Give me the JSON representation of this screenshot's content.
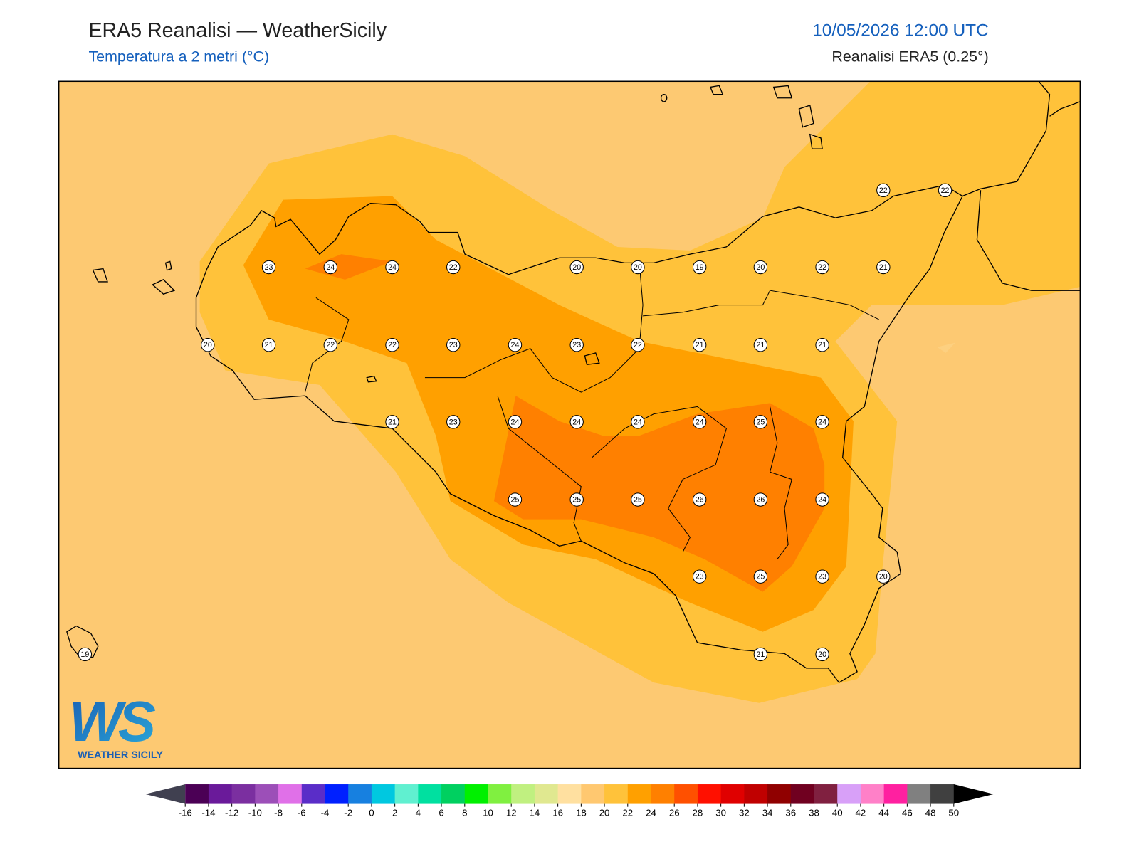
{
  "header": {
    "title": "ERA5 Reanalisi — WeatherSicily",
    "subtitle": "Temperatura a 2 metri (°C)",
    "datetime": "10/05/2026 12:00 UTC",
    "source": "Reanalisi ERA5 (0.25°)"
  },
  "stations": [
    {
      "value": 22
    },
    {
      "value": 22
    },
    {
      "value": 23
    },
    {
      "value": 24
    },
    {
      "value": 24
    },
    {
      "value": 22
    },
    {
      "value": 20
    },
    {
      "value": 20
    },
    {
      "value": 19
    },
    {
      "value": 20
    },
    {
      "value": 22
    },
    {
      "value": 21
    },
    {
      "value": 20
    },
    {
      "value": 21
    },
    {
      "value": 22
    },
    {
      "value": 22
    },
    {
      "value": 23
    },
    {
      "value": 24
    },
    {
      "value": 23
    },
    {
      "value": 22
    },
    {
      "value": 21
    },
    {
      "value": 21
    },
    {
      "value": 21
    },
    {
      "value": 21
    },
    {
      "value": 23
    },
    {
      "value": 24
    },
    {
      "value": 24
    },
    {
      "value": 24
    },
    {
      "value": 24
    },
    {
      "value": 25
    },
    {
      "value": 24
    },
    {
      "value": 25
    },
    {
      "value": 25
    },
    {
      "value": 25
    },
    {
      "value": 26
    },
    {
      "value": 26
    },
    {
      "value": 24
    },
    {
      "value": 23
    },
    {
      "value": 25
    },
    {
      "value": 23
    },
    {
      "value": 20
    },
    {
      "value": 19
    },
    {
      "value": 21
    },
    {
      "value": 20
    }
  ],
  "colorbar": {
    "ticks": [
      -16,
      -14,
      -12,
      -10,
      -8,
      -6,
      -4,
      -2,
      0,
      2,
      4,
      6,
      8,
      10,
      12,
      14,
      16,
      18,
      20,
      22,
      24,
      26,
      28,
      30,
      32,
      34,
      36,
      38,
      40,
      42,
      44,
      46,
      48,
      50
    ],
    "colors": [
      "#4b0055",
      "#6a1a9a",
      "#7b2fa0",
      "#9c4fb8",
      "#e070e8",
      "#5a2dc8",
      "#0020ff",
      "#1780e0",
      "#00c8e0",
      "#60f0d0",
      "#00e0a0",
      "#00d060",
      "#00f000",
      "#80f040",
      "#c0f080",
      "#e0e890",
      "#ffe0a0",
      "#ffc870",
      "#ffc23a",
      "#ffa000",
      "#ff8000",
      "#ff5000",
      "#ff1000",
      "#e00000",
      "#c00000",
      "#900000",
      "#700020",
      "#802040",
      "#d8a0f8",
      "#ff80c8",
      "#ff20a0",
      "#808080",
      "#404040"
    ],
    "under_color": "#404050",
    "over_color": "#000000"
  },
  "logo": {
    "mark": "WS",
    "text": "WEATHER SICILY"
  }
}
